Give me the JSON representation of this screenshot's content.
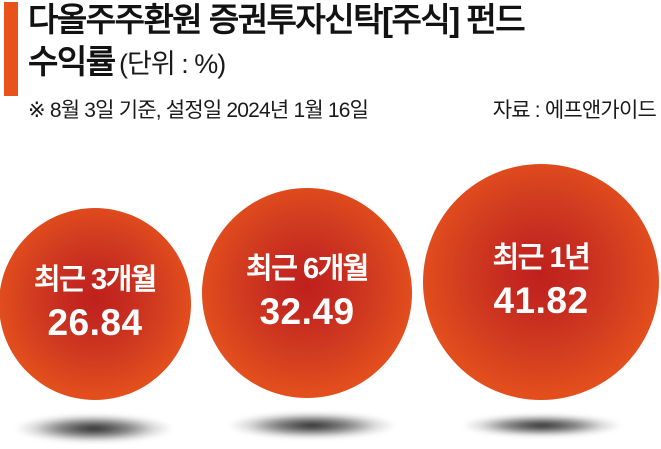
{
  "accent_color": "#e8531c",
  "header": {
    "title_line1": "다올주주환원 증권투자신탁[주식] 펀드",
    "title_line2": "수익률",
    "unit_label": "(단위 : %)",
    "note_left": "※ 8월 3일 기준, 설정일 2024년 1월 16일",
    "note_right": "자료 : 에프앤가이드"
  },
  "bubbles": [
    {
      "label": "최근 3개월",
      "value": "26.84"
    },
    {
      "label": "최근 6개월",
      "value": "32.49"
    },
    {
      "label": "최근 1년",
      "value": "41.82"
    }
  ],
  "chart_data": {
    "type": "bubble",
    "title": "다올주주환원 증권투자신탁[주식] 펀드 수익률",
    "unit": "%",
    "note": "※ 8월 3일 기준, 설정일 2024년 1월 16일",
    "source": "자료 : 에프앤가이드",
    "categories": [
      "최근 3개월",
      "최근 6개월",
      "최근 1년"
    ],
    "values": [
      26.84,
      32.49,
      41.82
    ],
    "legend": "none",
    "grid": false,
    "bubble_edge_color": "#e8541a",
    "bubble_center_color": "#c0251e",
    "text_color": "#ffffff",
    "layout_hint": "three bubbles left-to-right, size proportional to value"
  }
}
